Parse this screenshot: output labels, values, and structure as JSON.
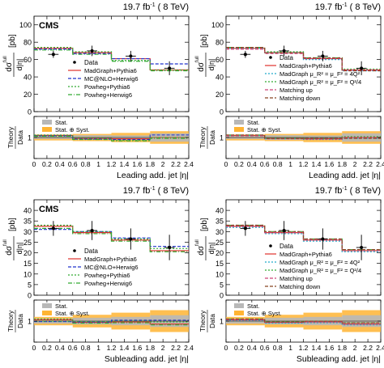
{
  "chart_data": [
    {
      "type": "histogram",
      "lumi": "19.7 fb",
      "lumi_sup": "-1",
      "energy": "( 8 TeV)",
      "experiment": "CMS",
      "ylabel_num": "dσ",
      "ylabel_sup": "full",
      "ylabel_den": "d|η|",
      "ylabel_unit": "[pb]",
      "ylim": [
        0,
        110
      ],
      "yticks": [
        0,
        20,
        40,
        60,
        80,
        100
      ],
      "xlabel": "Leading add. jet |η|",
      "xlim": [
        0,
        2.4
      ],
      "xticks": [
        0,
        0.2,
        0.4,
        0.6,
        0.8,
        1,
        1.2,
        1.4,
        1.6,
        1.8,
        2,
        2.2,
        2.4
      ],
      "xticklabels": [
        "0",
        "0.2",
        "0.4",
        "0.6",
        "0.8",
        "1",
        "1.2",
        "1.4",
        "1.6",
        "1.8",
        "2",
        "2.2",
        "2.4"
      ],
      "bins": [
        0,
        0.6,
        1.2,
        1.8,
        2.4
      ],
      "data": {
        "name": "Data",
        "x": [
          0.3,
          0.9,
          1.5,
          2.1
        ],
        "y": [
          66,
          70,
          64,
          50
        ],
        "err": [
          4,
          6,
          6,
          8
        ]
      },
      "series": [
        {
          "name": "MadGraph+Pythia6",
          "color": "#e0302a",
          "dash": "",
          "values": [
            73,
            68,
            61,
            48
          ]
        },
        {
          "name": "MC@NLO+Herwig6",
          "color": "#2233cc",
          "dash": "4,2",
          "values": [
            72,
            67,
            61,
            55
          ]
        },
        {
          "name": "Powheg+Pythia6",
          "color": "#33aa33",
          "dash": "2,2",
          "values": [
            74,
            69,
            59,
            48
          ]
        },
        {
          "name": "Powheg+Herwig6",
          "color": "#33aa33",
          "dash": "5,2,1,2",
          "values": [
            71,
            66,
            58,
            47
          ]
        }
      ],
      "legend_data_label": "Data",
      "ratio": {
        "ylabel_top": "Theory",
        "ylabel_bottom": "Data",
        "ylim": [
          0.5,
          1.5
        ],
        "yticks": [
          0.5,
          1,
          1.5
        ],
        "yticklabels": [
          "",
          "1",
          ""
        ],
        "stat": [
          0.035,
          0.055,
          0.05,
          0.1
        ],
        "syst": [
          0.07,
          0.085,
          0.11,
          0.15
        ],
        "series": [
          {
            "color": "#e0302a",
            "dash": "",
            "values": [
              1.05,
              0.98,
              0.97,
              1.0
            ]
          },
          {
            "color": "#2233cc",
            "dash": "4,2",
            "values": [
              1.04,
              0.96,
              0.95,
              1.06
            ]
          },
          {
            "color": "#33aa33",
            "dash": "2,2",
            "values": [
              1.06,
              0.99,
              0.93,
              1.0
            ]
          },
          {
            "color": "#33aa33",
            "dash": "5,2,1,2",
            "values": [
              1.03,
              0.95,
              0.92,
              0.98
            ]
          }
        ],
        "legend": [
          "Stat.",
          "Stat. ⊕ Syst."
        ]
      }
    },
    {
      "type": "histogram",
      "lumi": "19.7 fb",
      "lumi_sup": "-1",
      "energy": "( 8 TeV)",
      "experiment": "",
      "ylabel_num": "dσ",
      "ylabel_sup": "full",
      "ylabel_den": "d|η|",
      "ylabel_unit": "[pb]",
      "ylim": [
        0,
        110
      ],
      "yticks": [
        0,
        20,
        40,
        60,
        80,
        100
      ],
      "xlabel": "Leading add. jet |η|",
      "xlim": [
        0,
        2.4
      ],
      "xticks": [
        0,
        0.2,
        0.4,
        0.6,
        0.8,
        1,
        1.2,
        1.4,
        1.6,
        1.8,
        2,
        2.2,
        2.4
      ],
      "xticklabels": [
        "0",
        "0.2",
        "0.4",
        "0.6",
        "0.8",
        "1",
        "1.2",
        "1.4",
        "1.6",
        "1.8",
        "2",
        "2.2",
        "2.4"
      ],
      "bins": [
        0,
        0.6,
        1.2,
        1.8,
        2.4
      ],
      "data": {
        "name": "Data",
        "x": [
          0.3,
          0.9,
          1.5,
          2.1
        ],
        "y": [
          66,
          70,
          64,
          50
        ],
        "err": [
          4,
          6,
          6,
          8
        ]
      },
      "series": [
        {
          "name": "MadGraph+Pythia6",
          "color": "#e0302a",
          "dash": "",
          "values": [
            73,
            68,
            61,
            48
          ]
        },
        {
          "name": "MadGraph μ_R² = μ_F² = 4Q²",
          "color": "#22aacc",
          "dash": "2,2",
          "values": [
            73,
            68,
            60,
            47
          ]
        },
        {
          "name": "MadGraph μ_R² = μ_F² = Q²/4",
          "color": "#33aa33",
          "dash": "2,2",
          "values": [
            74,
            69,
            62,
            49
          ]
        },
        {
          "name": "Matching up",
          "color": "#cc4477",
          "dash": "4,2",
          "values": [
            72,
            67,
            61,
            48
          ]
        },
        {
          "name": "Matching down",
          "color": "#884422",
          "dash": "4,2",
          "values": [
            74,
            68,
            62,
            47
          ]
        }
      ],
      "legend_data_label": "Data",
      "ratio": {
        "ylabel_top": "Theory",
        "ylabel_bottom": "Data",
        "ylim": [
          0.5,
          1.5
        ],
        "yticks": [
          0.5,
          1,
          1.5
        ],
        "yticklabels": [
          "",
          "1",
          ""
        ],
        "stat": [
          0.035,
          0.055,
          0.05,
          0.1
        ],
        "syst": [
          0.07,
          0.085,
          0.11,
          0.15
        ],
        "series": [
          {
            "color": "#e0302a",
            "dash": "",
            "values": [
              1.05,
              0.98,
              0.97,
              1.0
            ]
          },
          {
            "color": "#22aacc",
            "dash": "2,2",
            "values": [
              1.05,
              0.97,
              0.95,
              0.98
            ]
          },
          {
            "color": "#33aa33",
            "dash": "2,2",
            "values": [
              1.06,
              0.99,
              0.98,
              1.02
            ]
          },
          {
            "color": "#cc4477",
            "dash": "4,2",
            "values": [
              1.04,
              0.97,
              0.96,
              1.0
            ]
          },
          {
            "color": "#884422",
            "dash": "4,2",
            "values": [
              1.06,
              0.98,
              0.98,
              0.98
            ]
          }
        ],
        "legend": [
          "Stat.",
          "Stat. ⊕ Syst."
        ]
      }
    },
    {
      "type": "histogram",
      "lumi": "19.7 fb",
      "lumi_sup": "-1",
      "energy": "( 8 TeV)",
      "experiment": "CMS",
      "ylabel_num": "dσ",
      "ylabel_sup": "full",
      "ylabel_den": "d|η|",
      "ylabel_unit": "[pb]",
      "ylim": [
        0,
        45
      ],
      "yticks": [
        0,
        5,
        10,
        15,
        20,
        25,
        30,
        35,
        40
      ],
      "xlabel": "Subleading add. jet |η|",
      "xlim": [
        0,
        2.4
      ],
      "xticks": [
        0,
        0.2,
        0.4,
        0.6,
        0.8,
        1,
        1.2,
        1.4,
        1.6,
        1.8,
        2,
        2.2,
        2.4
      ],
      "xticklabels": [
        "0",
        "0.2",
        "0.4",
        "0.6",
        "0.8",
        "1",
        "1.2",
        "1.4",
        "1.6",
        "1.8",
        "2",
        "2.2",
        "2.4"
      ],
      "bins": [
        0,
        0.6,
        1.2,
        1.8,
        2.4
      ],
      "data": {
        "name": "Data",
        "x": [
          0.3,
          0.9,
          1.5,
          2.1
        ],
        "y": [
          31.5,
          30.5,
          26.5,
          22.5
        ],
        "err": [
          3.5,
          4.5,
          5,
          6
        ]
      },
      "series": [
        {
          "name": "MadGraph+Pythia6",
          "color": "#e0302a",
          "dash": "",
          "values": [
            32.5,
            29.5,
            26,
            21
          ]
        },
        {
          "name": "MC@NLO+Herwig6",
          "color": "#2233cc",
          "dash": "4,2",
          "values": [
            31,
            30,
            27,
            23
          ]
        },
        {
          "name": "Powheg+Pythia6",
          "color": "#33aa33",
          "dash": "2,2",
          "values": [
            33,
            30,
            26.5,
            22
          ]
        },
        {
          "name": "Powheg+Herwig6",
          "color": "#33aa33",
          "dash": "5,2,1,2",
          "values": [
            31.5,
            29,
            25.5,
            20.5
          ]
        }
      ],
      "legend_data_label": "Data",
      "ratio": {
        "ylabel_top": "Theory",
        "ylabel_bottom": "Data",
        "ylim": [
          0.5,
          1.5
        ],
        "yticks": [
          0.5,
          1,
          1.5
        ],
        "yticklabels": [
          "",
          "1",
          ""
        ],
        "stat": [
          0.06,
          0.08,
          0.1,
          0.14
        ],
        "syst": [
          0.1,
          0.15,
          0.2,
          0.26
        ],
        "series": [
          {
            "color": "#e0302a",
            "dash": "",
            "values": [
              1.03,
              0.97,
              0.98,
              0.93
            ]
          },
          {
            "color": "#2233cc",
            "dash": "4,2",
            "values": [
              0.99,
              0.98,
              1.02,
              1.02
            ]
          },
          {
            "color": "#33aa33",
            "dash": "2,2",
            "values": [
              1.05,
              0.99,
              1.0,
              0.98
            ]
          },
          {
            "color": "#33aa33",
            "dash": "5,2,1,2",
            "values": [
              1.0,
              0.95,
              0.96,
              0.91
            ]
          }
        ],
        "legend": [
          "Stat.",
          "Stat. ⊕ Syst."
        ]
      }
    },
    {
      "type": "histogram",
      "lumi": "19.7 fb",
      "lumi_sup": "-1",
      "energy": "( 8 TeV)",
      "experiment": "",
      "ylabel_num": "dσ",
      "ylabel_sup": "full",
      "ylabel_den": "d|η|",
      "ylabel_unit": "[pb]",
      "ylim": [
        0,
        45
      ],
      "yticks": [
        0,
        5,
        10,
        15,
        20,
        25,
        30,
        35,
        40
      ],
      "xlabel": "Subleading add. jet |η|",
      "xlim": [
        0,
        2.4
      ],
      "xticks": [
        0,
        0.2,
        0.4,
        0.6,
        0.8,
        1,
        1.2,
        1.4,
        1.6,
        1.8,
        2,
        2.2,
        2.4
      ],
      "xticklabels": [
        "0",
        "0.2",
        "0.4",
        "0.6",
        "0.8",
        "1",
        "1.2",
        "1.4",
        "1.6",
        "1.8",
        "2",
        "2.2",
        "2.4"
      ],
      "bins": [
        0,
        0.6,
        1.2,
        1.8,
        2.4
      ],
      "data": {
        "name": "Data",
        "x": [
          0.3,
          0.9,
          1.5,
          2.1
        ],
        "y": [
          31.5,
          30.5,
          26.5,
          22.5
        ],
        "err": [
          3.5,
          4.5,
          5,
          6
        ]
      },
      "series": [
        {
          "name": "MadGraph+Pythia6",
          "color": "#e0302a",
          "dash": "",
          "values": [
            32.5,
            29.5,
            26,
            21
          ]
        },
        {
          "name": "MadGraph μ_R² = μ_F² = 4Q²",
          "color": "#22aacc",
          "dash": "2,2",
          "values": [
            32,
            29,
            25.5,
            20.5
          ]
        },
        {
          "name": "MadGraph μ_R² = μ_F² = Q²/4",
          "color": "#33aa33",
          "dash": "2,2",
          "values": [
            33,
            30,
            26.5,
            21.5
          ]
        },
        {
          "name": "Matching up",
          "color": "#cc4477",
          "dash": "4,2",
          "values": [
            32.5,
            29.5,
            26,
            21
          ]
        },
        {
          "name": "Matching down",
          "color": "#884422",
          "dash": "4,2",
          "values": [
            33,
            30,
            26.5,
            21.5
          ]
        }
      ],
      "legend_data_label": "Data",
      "ratio": {
        "ylabel_top": "Theory",
        "ylabel_bottom": "Data",
        "ylim": [
          0.5,
          1.5
        ],
        "yticks": [
          0.5,
          1,
          1.5
        ],
        "yticklabels": [
          "",
          "1",
          ""
        ],
        "stat": [
          0.06,
          0.08,
          0.1,
          0.14
        ],
        "syst": [
          0.1,
          0.15,
          0.2,
          0.26
        ],
        "series": [
          {
            "color": "#e0302a",
            "dash": "",
            "values": [
              1.03,
              0.97,
              0.98,
              0.93
            ]
          },
          {
            "color": "#22aacc",
            "dash": "2,2",
            "values": [
              1.02,
              0.95,
              0.96,
              0.91
            ]
          },
          {
            "color": "#33aa33",
            "dash": "2,2",
            "values": [
              1.05,
              0.99,
              1.0,
              0.96
            ]
          },
          {
            "color": "#cc4477",
            "dash": "4,2",
            "values": [
              1.03,
              0.97,
              0.98,
              0.93
            ]
          },
          {
            "color": "#884422",
            "dash": "4,2",
            "values": [
              1.05,
              0.98,
              1.0,
              0.96
            ]
          }
        ],
        "legend": [
          "Stat.",
          "Stat. ⊕ Syst."
        ]
      }
    }
  ]
}
